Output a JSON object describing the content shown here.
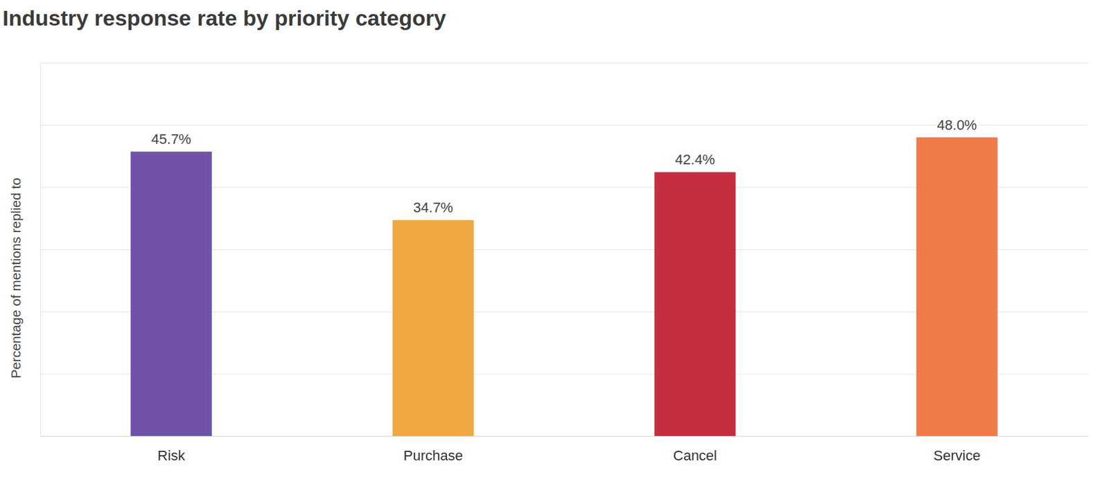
{
  "chart_data": {
    "type": "bar",
    "title": "Industry response rate by priority category",
    "y_label": "Percentage of mentions replied to",
    "categories": [
      "Risk",
      "Purchase",
      "Cancel",
      "Service"
    ],
    "values": [
      45.7,
      34.7,
      42.4,
      48.0
    ],
    "value_labels": [
      "45.7%",
      "34.7%",
      "42.4%",
      "48.0%"
    ],
    "colors": [
      "#7052ab",
      "#f0a942",
      "#c42e40",
      "#ef7b4a"
    ],
    "ylim": [
      0,
      60
    ],
    "yticks": [
      0,
      10,
      20,
      30,
      40,
      50,
      60
    ],
    "grid": true,
    "data_labels": true,
    "tick_labels": "x"
  }
}
